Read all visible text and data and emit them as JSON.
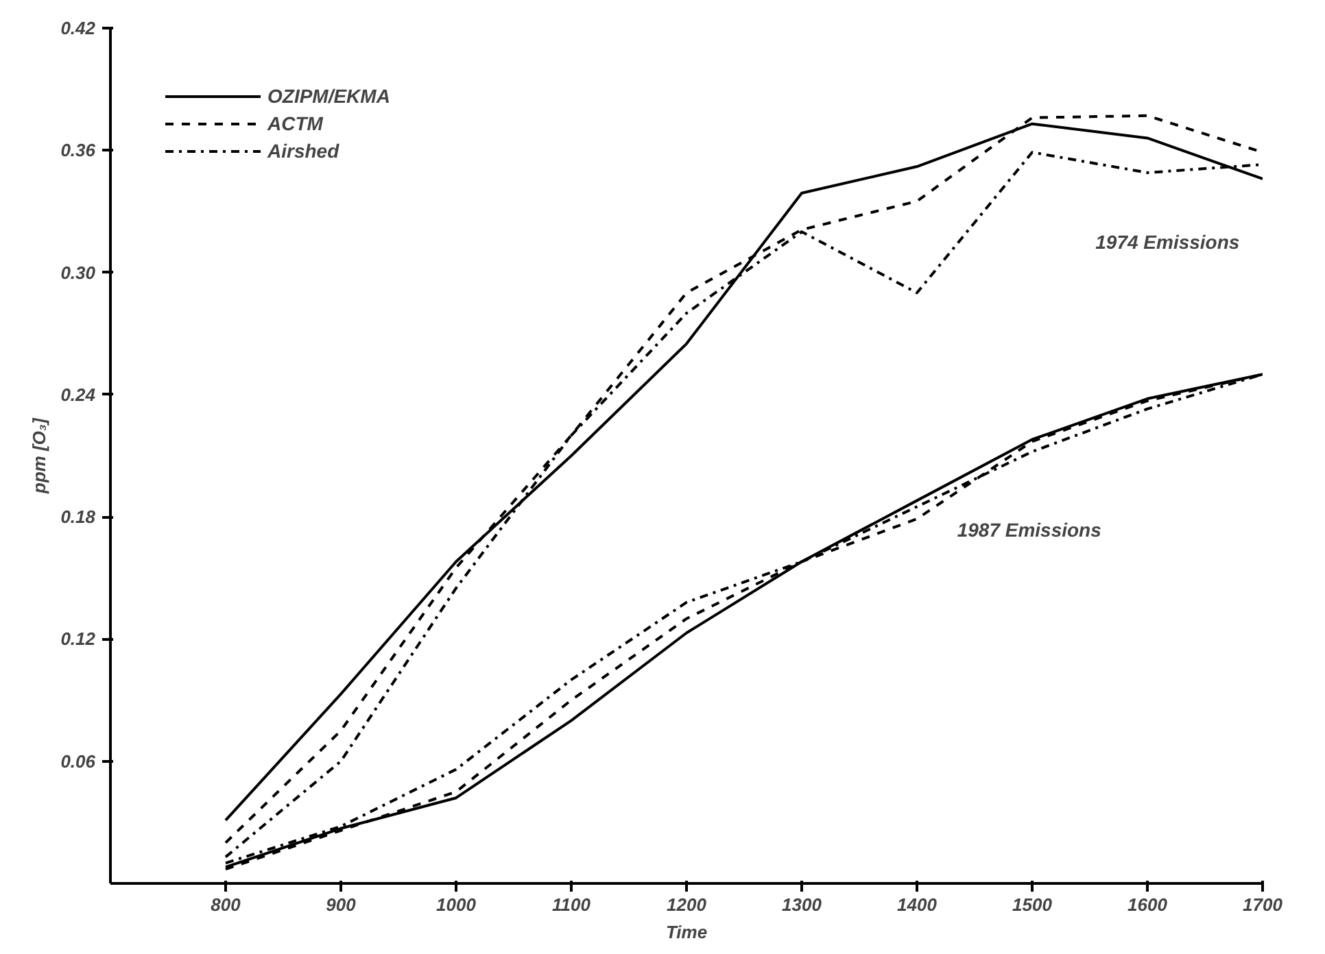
{
  "chart_data": {
    "type": "line",
    "xlabel": "Time",
    "ylabel": "ppm [O₃]",
    "x": [
      800,
      900,
      1000,
      1100,
      1200,
      1300,
      1400,
      1500,
      1600,
      1700
    ],
    "xlim": [
      700,
      1700
    ],
    "ylim": [
      0,
      0.42
    ],
    "xticks": [
      800,
      900,
      1000,
      1100,
      1200,
      1300,
      1400,
      1500,
      1600,
      1700
    ],
    "yticks": [
      0.06,
      0.12,
      0.18,
      0.24,
      {
        "value": 0.3,
        "label": "0.30"
      },
      0.36,
      0.42
    ],
    "grid": false,
    "legend": "top left",
    "marker": "none",
    "series": [
      {
        "name": "OZIPM/EKMA",
        "color": "#000000",
        "line_style": "solid",
        "values": [
          0.031,
          0.093,
          0.158,
          0.21,
          0.265,
          0.339,
          0.352,
          0.373,
          0.366,
          0.346
        ]
      },
      {
        "name": "ACTM",
        "color": "#000000",
        "line_style": "dashed",
        "values": [
          0.02,
          0.075,
          0.155,
          0.22,
          0.29,
          0.321,
          0.335,
          0.376,
          0.377,
          0.359
        ]
      },
      {
        "name": "Airshed",
        "color": "#000000",
        "line_style": "dashdot",
        "values": [
          0.013,
          0.06,
          0.145,
          0.22,
          0.28,
          0.32,
          0.29,
          0.359,
          0.349,
          0.353
        ]
      },
      {
        "color": "#000000",
        "line_style": "solid",
        "values": [
          0.008,
          0.027,
          0.042,
          0.08,
          0.123,
          0.158,
          0.188,
          0.218,
          0.238,
          0.25
        ]
      },
      {
        "color": "#000000",
        "line_style": "dashed",
        "values": [
          0.007,
          0.026,
          0.045,
          0.09,
          0.13,
          0.158,
          0.179,
          0.217,
          0.237,
          0.25
        ]
      },
      {
        "color": "#000000",
        "line_style": "dashdot",
        "values": [
          0.01,
          0.028,
          0.056,
          0.1,
          0.138,
          0.158,
          0.185,
          0.212,
          0.233,
          0.25
        ]
      }
    ],
    "annotations": [
      "1974 Emissions",
      "1987 Emissions"
    ]
  }
}
